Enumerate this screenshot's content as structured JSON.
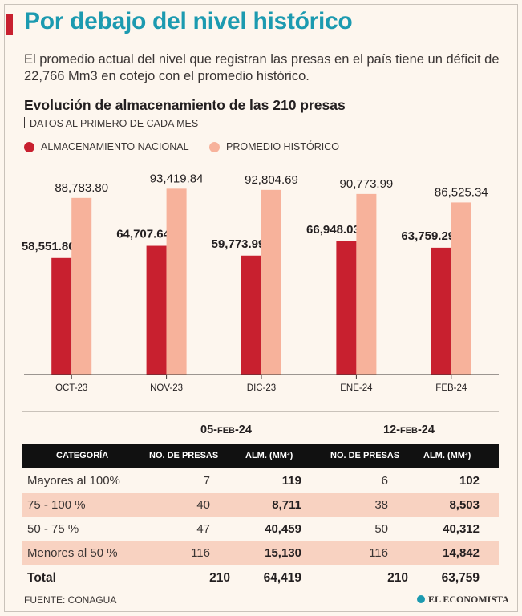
{
  "headline": "Por debajo del nivel histórico",
  "deck": "El promedio actual del nivel que registran las presas en el país tiene un déficit de 22,766 Mm3 en cotejo con el promedio histórico.",
  "colors": {
    "accent": "#c8202f",
    "headline": "#1c9ab0",
    "historic": "#f7b29b",
    "row_shade": "#f8d2c1"
  },
  "chart_data": {
    "type": "bar",
    "title": "Evolución de almacenamiento de las 210 presas",
    "subtitle": "DATOS AL PRIMERO DE CADA MES",
    "categories": [
      "OCT-23",
      "NOV-23",
      "DIC-23",
      "ENE-24",
      "FEB-24"
    ],
    "series": [
      {
        "name": "ALMACENAMIENTO NACIONAL",
        "color": "#c8202f",
        "values": [
          58551.8,
          64707.64,
          59773.99,
          66948.03,
          63759.29
        ],
        "labels": [
          "58,551.80",
          "64,707.64",
          "59,773.99",
          "66,948.03",
          "63,759.29"
        ]
      },
      {
        "name": "PROMEDIO HISTÓRICO",
        "color": "#f7b29b",
        "values": [
          88783.8,
          93419.84,
          92804.69,
          90773.99,
          86525.34
        ],
        "labels": [
          "88,783.80",
          "93,419.84",
          "92,804.69",
          "90,773.99",
          "86,525.34"
        ]
      }
    ],
    "ylim": [
      0,
      100000
    ],
    "grid": false,
    "legend": "top-left",
    "xlabel": "",
    "ylabel": ""
  },
  "table": {
    "date1": {
      "day": "05-",
      "month": "FEB",
      "year": "-24"
    },
    "date2": {
      "day": "12-",
      "month": "FEB",
      "year": "-24"
    },
    "headers": [
      "CATEGORÍA",
      "NO. DE PRESAS",
      "ALM. (MM³)",
      "NO. DE PRESAS",
      "ALM. (MM³)"
    ],
    "rows": [
      {
        "category": "Mayores al 100%",
        "presas1": "7",
        "alm1": "119",
        "presas2": "6",
        "alm2": "102"
      },
      {
        "category": "75 - 100 %",
        "presas1": "40",
        "alm1": "8,711",
        "presas2": "38",
        "alm2": "8,503"
      },
      {
        "category": "50 - 75 %",
        "presas1": "47",
        "alm1": "40,459",
        "presas2": "50",
        "alm2": "40,312"
      },
      {
        "category": "Menores al 50 %",
        "presas1": "116",
        "alm1": "15,130",
        "presas2": "116",
        "alm2": "14,842"
      }
    ],
    "total": {
      "category": "Total",
      "presas1": "210",
      "alm1": "64,419",
      "presas2": "210",
      "alm2": "63,759"
    }
  },
  "source": "FUENTE: CONAGUA",
  "logo_text": "EL ECONOMISTA"
}
